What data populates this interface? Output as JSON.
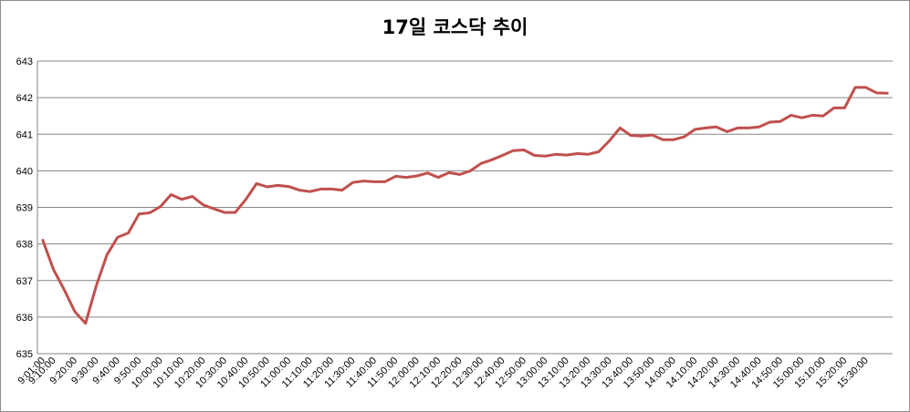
{
  "chart_data": {
    "type": "line",
    "title": "17일 코스닥 추이",
    "xlabel": "",
    "ylabel": "",
    "ylim": [
      635,
      643
    ],
    "yticks": [
      635,
      636,
      637,
      638,
      639,
      640,
      641,
      642,
      643
    ],
    "grid": "horizontal",
    "legend": "none",
    "xtick_labels": [
      "9:01:00",
      "9:10:00",
      "9:20:00",
      "9:30:00",
      "9:40:00",
      "9:50:00",
      "10:00:00",
      "10:10:00",
      "10:20:00",
      "10:30:00",
      "10:40:00",
      "10:50:00",
      "11:00:00",
      "11:10:00",
      "11:20:00",
      "11:30:00",
      "11:40:00",
      "11:50:00",
      "12:00:00",
      "12:10:00",
      "12:20:00",
      "12:30:00",
      "12:40:00",
      "12:50:00",
      "13:00:00",
      "13:10:00",
      "13:20:00",
      "13:30:00",
      "13:40:00",
      "13:50:00",
      "14:00:00",
      "14:10:00",
      "14:20:00",
      "14:30:00",
      "14:40:00",
      "14:50:00",
      "15:00:00",
      "15:10:00",
      "15:20:00",
      "15:30:00"
    ],
    "series": [
      {
        "color": "#c0504d",
        "values": [
          638.1,
          637.3,
          636.75,
          636.15,
          635.83,
          636.85,
          637.7,
          638.18,
          638.3,
          638.82,
          638.85,
          639.02,
          639.35,
          639.22,
          639.3,
          639.07,
          638.96,
          638.86,
          638.86,
          639.22,
          639.65,
          639.56,
          639.6,
          639.57,
          639.47,
          639.43,
          639.5,
          639.5,
          639.47,
          639.68,
          639.72,
          639.7,
          639.7,
          639.85,
          639.82,
          639.86,
          639.94,
          639.82,
          639.95,
          639.9,
          640.0,
          640.2,
          640.3,
          640.42,
          640.55,
          640.57,
          640.42,
          640.4,
          640.45,
          640.43,
          640.47,
          640.45,
          640.52,
          640.82,
          641.17,
          640.97,
          640.95,
          640.98,
          640.85,
          640.85,
          640.93,
          641.13,
          641.17,
          641.2,
          641.07,
          641.17,
          641.17,
          641.2,
          641.33,
          641.35,
          641.52,
          641.45,
          641.52,
          641.5,
          641.72,
          641.72,
          642.28,
          642.28,
          642.13,
          642.12
        ]
      }
    ]
  }
}
